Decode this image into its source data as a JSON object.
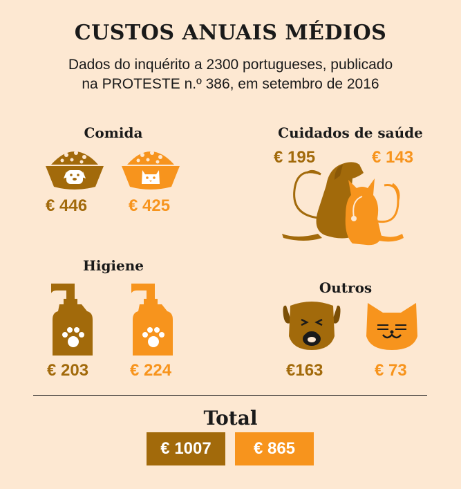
{
  "title": "CUSTOS ANUAIS MÉDIOS",
  "subtitle_line1": "Dados do inquérito a 2300 portugueses, publicado",
  "subtitle_line2": "na PROTESTE n.º 386, em setembro de 2016",
  "colors": {
    "dog": "#a26a0b",
    "cat": "#f7941d",
    "background": "#fde8d2"
  },
  "sections": {
    "comida": {
      "label": "Comida",
      "dog": "€ 446",
      "cat": "€ 425"
    },
    "saude": {
      "label": "Cuidados de saúde",
      "dog": "€ 195",
      "cat": "€ 143"
    },
    "higiene": {
      "label": "Higiene",
      "dog": "€ 203",
      "cat": "€ 224"
    },
    "outros": {
      "label": "Outros",
      "dog": "€163",
      "cat": "€ 73"
    }
  },
  "total": {
    "label": "Total",
    "dog": "€ 1007",
    "cat": "€ 865"
  },
  "icons": [
    "dog-food-bowl-icon",
    "cat-food-bowl-icon",
    "dog-cat-stethoscope-icon",
    "dog-soap-dispenser-icon",
    "cat-soap-dispenser-icon",
    "dog-face-icon",
    "cat-face-icon"
  ]
}
